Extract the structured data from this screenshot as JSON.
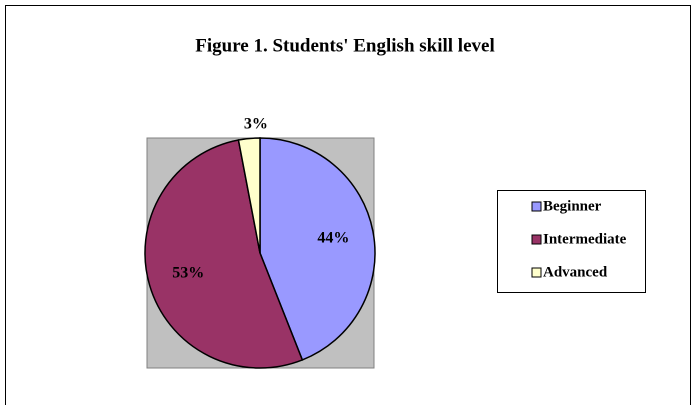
{
  "chart_data": {
    "type": "pie",
    "title": "Figure 1. Students' English skill level",
    "categories": [
      "Beginner",
      "Intermediate",
      "Advanced"
    ],
    "values": [
      44,
      53,
      3
    ],
    "value_labels": [
      "44%",
      "53%",
      "3%"
    ],
    "colors": [
      "#9999ff",
      "#993366",
      "#ffffcc"
    ],
    "legend": "right"
  }
}
